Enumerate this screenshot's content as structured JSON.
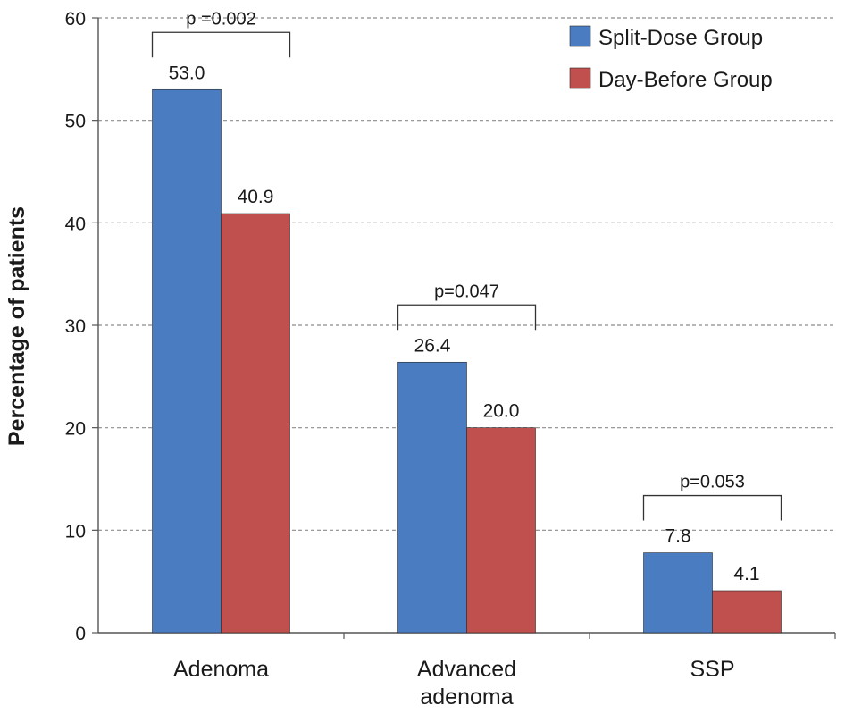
{
  "chart_data": {
    "type": "bar",
    "title": "",
    "xlabel": "",
    "ylabel": "Percentage of patients",
    "ylim": [
      0,
      60
    ],
    "yticks": [
      0,
      10,
      20,
      30,
      40,
      50,
      60
    ],
    "grid": true,
    "legend_position": "top-right",
    "categories": [
      [
        "Adenoma"
      ],
      [
        "Advanced",
        "adenoma"
      ],
      [
        "SSP"
      ]
    ],
    "series": [
      {
        "name": "Split-Dose Group",
        "color": "#4a7cc1",
        "values": [
          53.0,
          26.4,
          7.8
        ],
        "labels": [
          "53.0",
          "26.4",
          "7.8"
        ]
      },
      {
        "name": "Day-Before Group",
        "color": "#c0504d",
        "values": [
          40.9,
          20.0,
          4.1
        ],
        "labels": [
          "40.9",
          "20.0",
          "4.1"
        ]
      }
    ],
    "annotations": [
      "p =0.002",
      "p=0.047",
      "p=0.053"
    ]
  }
}
